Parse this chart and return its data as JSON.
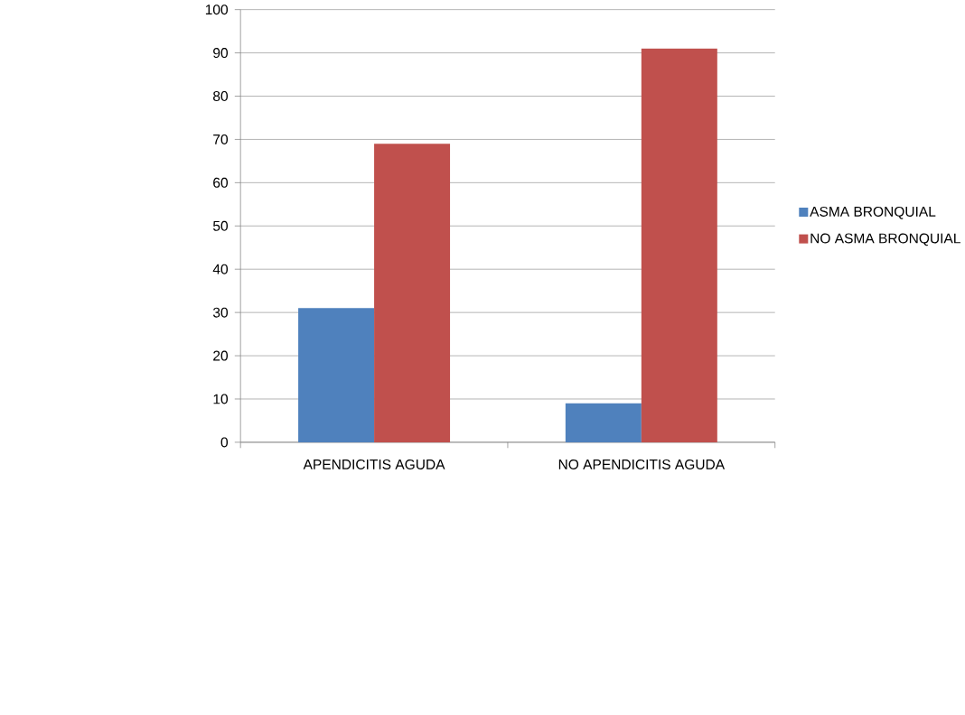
{
  "chart_data": {
    "type": "bar",
    "categories": [
      "APENDICITIS AGUDA",
      "NO APENDICITIS AGUDA"
    ],
    "series": [
      {
        "name": "ASMA BRONQUIAL",
        "color": "#4f81bd",
        "values": [
          31,
          9
        ]
      },
      {
        "name": "NO ASMA BRONQUIAL",
        "color": "#c0504d",
        "values": [
          69,
          91
        ]
      }
    ],
    "ylim": [
      0,
      100
    ],
    "yticks": [
      0,
      10,
      20,
      30,
      40,
      50,
      60,
      70,
      80,
      90,
      100
    ],
    "grid": "y",
    "legend": "right"
  }
}
